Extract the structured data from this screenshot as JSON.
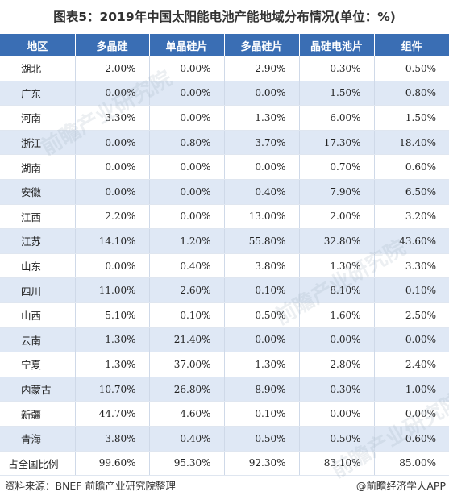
{
  "title": "图表5：2019年中国太阳能电池产能地域分布情况(单位：%)",
  "headers": [
    "地区",
    "多晶硅",
    "单晶硅片",
    "多晶硅片",
    "晶硅电池片",
    "组件"
  ],
  "rows": [
    {
      "region": "湖北",
      "values": [
        "2.00%",
        "0.00%",
        "2.90%",
        "0.30%",
        "0.50%"
      ]
    },
    {
      "region": "广东",
      "values": [
        "0.00%",
        "0.00%",
        "0.00%",
        "1.50%",
        "0.80%"
      ]
    },
    {
      "region": "河南",
      "values": [
        "3.30%",
        "0.00%",
        "1.30%",
        "6.00%",
        "1.50%"
      ]
    },
    {
      "region": "浙江",
      "values": [
        "0.00%",
        "0.80%",
        "3.70%",
        "17.30%",
        "18.40%"
      ]
    },
    {
      "region": "湖南",
      "values": [
        "0.00%",
        "0.00%",
        "0.00%",
        "0.70%",
        "0.60%"
      ]
    },
    {
      "region": "安徽",
      "values": [
        "0.00%",
        "0.00%",
        "0.40%",
        "7.90%",
        "6.50%"
      ]
    },
    {
      "region": "江西",
      "values": [
        "2.20%",
        "0.00%",
        "13.00%",
        "2.00%",
        "3.20%"
      ]
    },
    {
      "region": "江苏",
      "values": [
        "14.10%",
        "1.20%",
        "55.80%",
        "32.80%",
        "43.60%"
      ]
    },
    {
      "region": "山东",
      "values": [
        "0.00%",
        "0.40%",
        "3.80%",
        "1.30%",
        "3.30%"
      ]
    },
    {
      "region": "四川",
      "values": [
        "11.00%",
        "2.60%",
        "0.10%",
        "8.10%",
        "0.10%"
      ]
    },
    {
      "region": "山西",
      "values": [
        "5.10%",
        "0.10%",
        "0.50%",
        "1.60%",
        "2.50%"
      ]
    },
    {
      "region": "云南",
      "values": [
        "1.30%",
        "21.40%",
        "0.00%",
        "0.00%",
        "0.00%"
      ]
    },
    {
      "region": "宁夏",
      "values": [
        "1.30%",
        "37.00%",
        "1.30%",
        "2.80%",
        "2.40%"
      ]
    },
    {
      "region": "内蒙古",
      "values": [
        "10.70%",
        "26.80%",
        "8.90%",
        "0.30%",
        "1.00%"
      ]
    },
    {
      "region": "新疆",
      "values": [
        "44.70%",
        "4.60%",
        "0.10%",
        "0.00%",
        "0.00%"
      ]
    },
    {
      "region": "青海",
      "values": [
        "3.80%",
        "0.40%",
        "0.50%",
        "0.50%",
        "0.60%"
      ]
    },
    {
      "region": "占全国比例",
      "values": [
        "99.60%",
        "95.30%",
        "92.30%",
        "83.10%",
        "85.00%"
      ]
    }
  ],
  "source": "资料来源：BNEF 前瞻产业研究院整理",
  "brand": "@前瞻经济学人APP",
  "watermark": "前瞻产业研究院"
}
